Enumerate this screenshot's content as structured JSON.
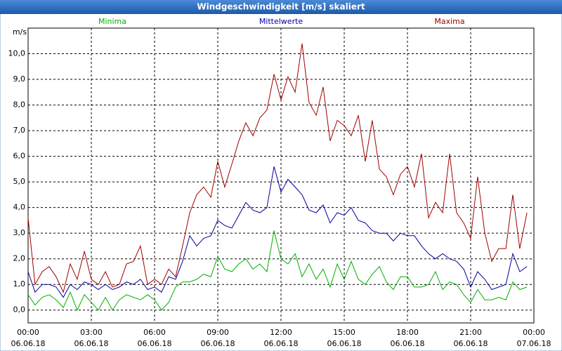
{
  "chart_data": {
    "type": "line",
    "title": "Windgeschwindigkeit [m/s] skaliert",
    "y_unit": "m/s",
    "x": [
      0,
      0.33,
      0.67,
      1,
      1.33,
      1.67,
      2,
      2.33,
      2.67,
      3,
      3.33,
      3.67,
      4,
      4.33,
      4.67,
      5,
      5.33,
      5.67,
      6,
      6.33,
      6.67,
      7,
      7.33,
      7.67,
      8,
      8.33,
      8.67,
      9,
      9.33,
      9.67,
      10,
      10.33,
      10.67,
      11,
      11.33,
      11.67,
      12,
      12.33,
      12.67,
      13,
      13.33,
      13.67,
      14,
      14.33,
      14.67,
      15,
      15.33,
      15.67,
      16,
      16.33,
      16.67,
      17,
      17.33,
      17.67,
      18,
      18.33,
      18.67,
      19,
      19.33,
      19.67,
      20,
      20.33,
      20.67,
      21,
      21.33,
      21.67,
      22,
      22.33,
      22.67,
      23,
      23.33,
      23.67
    ],
    "series": [
      {
        "name": "Minima",
        "color": "#00b000",
        "values": [
          0.6,
          0.2,
          0.5,
          0.6,
          0.4,
          0.1,
          0.7,
          0.0,
          0.6,
          0.3,
          0.0,
          0.5,
          0.0,
          0.4,
          0.6,
          0.5,
          0.4,
          0.6,
          0.4,
          0.0,
          0.3,
          0.9,
          1.1,
          1.1,
          1.2,
          1.4,
          1.3,
          2.1,
          1.6,
          1.5,
          1.8,
          2.0,
          1.6,
          1.8,
          1.5,
          3.1,
          2.0,
          1.8,
          2.2,
          1.3,
          1.8,
          1.2,
          1.6,
          0.9,
          1.8,
          1.2,
          1.9,
          1.2,
          1.0,
          1.4,
          1.7,
          1.1,
          0.8,
          1.3,
          1.3,
          0.9,
          0.9,
          1.0,
          1.5,
          0.8,
          1.1,
          1.0,
          0.6,
          0.3,
          0.8,
          0.4,
          0.4,
          0.5,
          0.4,
          1.1,
          0.8,
          0.9
        ]
      },
      {
        "name": "Mittelwerte",
        "color": "#0000a0",
        "values": [
          1.5,
          0.7,
          1.0,
          1.0,
          0.9,
          0.5,
          1.0,
          0.8,
          1.1,
          1.0,
          0.8,
          1.0,
          0.8,
          0.9,
          1.1,
          1.0,
          1.2,
          0.8,
          0.9,
          0.7,
          1.3,
          1.2,
          1.9,
          2.9,
          2.5,
          2.8,
          2.9,
          3.5,
          3.3,
          3.2,
          3.7,
          4.2,
          3.9,
          3.8,
          4.0,
          5.6,
          4.6,
          5.1,
          4.8,
          4.5,
          3.9,
          3.8,
          4.1,
          3.4,
          3.8,
          3.7,
          4.0,
          3.5,
          3.4,
          3.1,
          3.0,
          3.0,
          2.7,
          3.0,
          2.9,
          2.9,
          2.5,
          2.2,
          2.0,
          2.2,
          2.0,
          1.9,
          1.6,
          0.9,
          1.5,
          1.2,
          0.8,
          0.9,
          1.0,
          2.2,
          1.5,
          1.7
        ]
      },
      {
        "name": "Maxima",
        "color": "#a00000",
        "values": [
          3.6,
          1.0,
          1.5,
          1.7,
          1.3,
          0.7,
          1.8,
          1.2,
          2.3,
          1.2,
          1.0,
          1.5,
          0.9,
          1.0,
          1.8,
          1.9,
          2.5,
          1.0,
          1.2,
          1.0,
          1.6,
          1.3,
          2.5,
          3.8,
          4.5,
          4.8,
          4.4,
          5.8,
          4.8,
          5.7,
          6.6,
          7.3,
          6.8,
          7.5,
          7.8,
          9.2,
          8.2,
          9.1,
          8.5,
          10.4,
          8.1,
          7.6,
          8.7,
          6.6,
          7.4,
          7.2,
          6.8,
          7.6,
          5.8,
          7.4,
          5.5,
          5.2,
          4.5,
          5.3,
          5.6,
          4.8,
          6.1,
          3.6,
          4.2,
          3.8,
          6.1,
          3.8,
          3.4,
          2.8,
          5.2,
          3.0,
          1.9,
          2.4,
          2.4,
          4.5,
          2.4,
          3.8
        ]
      }
    ],
    "xlim": [
      0,
      24
    ],
    "xticks": [
      {
        "value": 0,
        "label": "00:00",
        "date": "06.06.18"
      },
      {
        "value": 3,
        "label": "03:00",
        "date": "06.06.18"
      },
      {
        "value": 6,
        "label": "06:00",
        "date": "06.06.18"
      },
      {
        "value": 9,
        "label": "09:00",
        "date": "06.06.18"
      },
      {
        "value": 12,
        "label": "12:00",
        "date": "06.06.18"
      },
      {
        "value": 15,
        "label": "15:00",
        "date": "06.06.18"
      },
      {
        "value": 18,
        "label": "18:00",
        "date": "06.06.18"
      },
      {
        "value": 21,
        "label": "21:00",
        "date": "06.06.18"
      },
      {
        "value": 24,
        "label": "00:00",
        "date": "07.06.18"
      }
    ],
    "ylim": [
      -0.5,
      11
    ],
    "yticks": [
      {
        "value": 0,
        "label": "0,0"
      },
      {
        "value": 1,
        "label": "1,0"
      },
      {
        "value": 2,
        "label": "2,0"
      },
      {
        "value": 3,
        "label": "3,0"
      },
      {
        "value": 4,
        "label": "4,0"
      },
      {
        "value": 5,
        "label": "5,0"
      },
      {
        "value": 6,
        "label": "6,0"
      },
      {
        "value": 7,
        "label": "7,0"
      },
      {
        "value": 8,
        "label": "8,0"
      },
      {
        "value": 9,
        "label": "9,0"
      },
      {
        "value": 10,
        "label": "10,0"
      }
    ],
    "grid": true
  }
}
